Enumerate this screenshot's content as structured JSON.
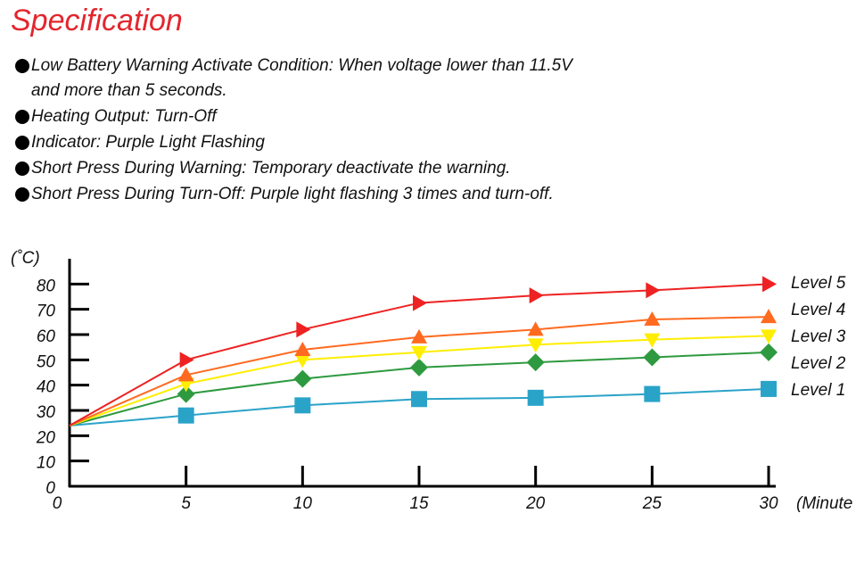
{
  "header": {
    "title": "Specification"
  },
  "bullets": [
    {
      "lines": [
        "Low Battery Warning Activate Condition: When voltage lower than 11.5V",
        "and more than 5 seconds."
      ]
    },
    {
      "lines": [
        "Heating Output: Turn-Off"
      ]
    },
    {
      "lines": [
        "Indicator: Purple Light Flashing"
      ]
    },
    {
      "lines": [
        "Short Press During Warning: Temporary deactivate the warning."
      ]
    },
    {
      "lines": [
        "Short Press During Turn-Off: Purple light flashing 3 times and turn-off."
      ]
    }
  ],
  "chart_data": {
    "type": "line",
    "y_label": "(˚C)",
    "x_label": "(Minute",
    "x": [
      0,
      5,
      10,
      15,
      20,
      25,
      30
    ],
    "xlim": [
      0,
      30
    ],
    "xticks": [
      0,
      5,
      10,
      15,
      20,
      25,
      30
    ],
    "ylim": [
      0,
      90
    ],
    "yticks": [
      0,
      10,
      20,
      30,
      40,
      50,
      60,
      70,
      80
    ],
    "series": [
      {
        "name": "Level 1",
        "color": "#2aa3c9",
        "marker": "square",
        "values": [
          24,
          28,
          32,
          34.5,
          35,
          36.5,
          38.5
        ]
      },
      {
        "name": "Level 2",
        "color": "#2e9a3f",
        "marker": "diamond",
        "values": [
          24,
          36.5,
          42.5,
          47,
          49,
          51,
          53
        ]
      },
      {
        "name": "Level 3",
        "color": "#ffee00",
        "marker": "triangle-down",
        "values": [
          24,
          40.5,
          50,
          53,
          56,
          58,
          59.5
        ]
      },
      {
        "name": "Level 4",
        "color": "#ff6a20",
        "marker": "triangle-up",
        "values": [
          24,
          44,
          54,
          59,
          62,
          66,
          67
        ]
      },
      {
        "name": "Level 5",
        "color": "#ee2222",
        "marker": "triangle-right",
        "values": [
          24,
          50,
          62,
          72.5,
          75.5,
          77.5,
          80
        ]
      }
    ]
  }
}
